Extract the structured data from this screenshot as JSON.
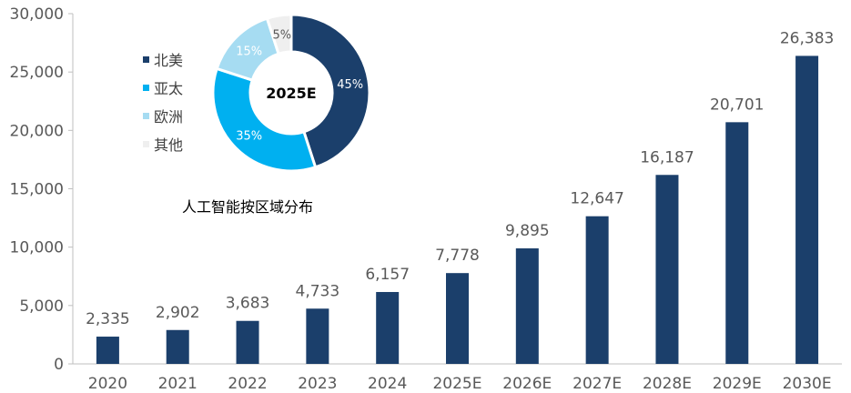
{
  "chart_data": [
    {
      "type": "bar",
      "categories": [
        "2020",
        "2021",
        "2022",
        "2023",
        "2024",
        "2025E",
        "2026E",
        "2027E",
        "2028E",
        "2029E",
        "2030E"
      ],
      "values": [
        2335,
        2902,
        3683,
        4733,
        6157,
        7778,
        9895,
        12647,
        16187,
        20701,
        26383
      ],
      "value_labels": [
        "2,335",
        "2,902",
        "3,683",
        "4,733",
        "6,157",
        "7,778",
        "9,895",
        "12,647",
        "16,187",
        "20,701",
        "26,383"
      ],
      "ylim": [
        0,
        30000
      ],
      "yticks": [
        0,
        5000,
        10000,
        15000,
        20000,
        25000,
        30000
      ],
      "ytick_labels": [
        "0",
        "5,000",
        "10,000",
        "15,000",
        "20,000",
        "25,000",
        "30,000"
      ],
      "title": "",
      "xlabel": "",
      "ylabel": "",
      "color": "#1b3f6b"
    },
    {
      "type": "pie",
      "donut": true,
      "center_label": "2025E",
      "title": "人工智能按区域分布",
      "slices": [
        {
          "name": "北美",
          "value": 45,
          "label": "45%",
          "color": "#1b3f6b",
          "label_color": "#ffffff"
        },
        {
          "name": "亚太",
          "value": 35,
          "label": "35%",
          "color": "#00b0f0",
          "label_color": "#ffffff"
        },
        {
          "name": "欧洲",
          "value": 15,
          "label": "15%",
          "color": "#a6dcf2",
          "label_color": "#ffffff"
        },
        {
          "name": "其他",
          "value": 5,
          "label": "5%",
          "color": "#efefef",
          "label_color": "#595959"
        }
      ],
      "legend_position": "left"
    }
  ]
}
